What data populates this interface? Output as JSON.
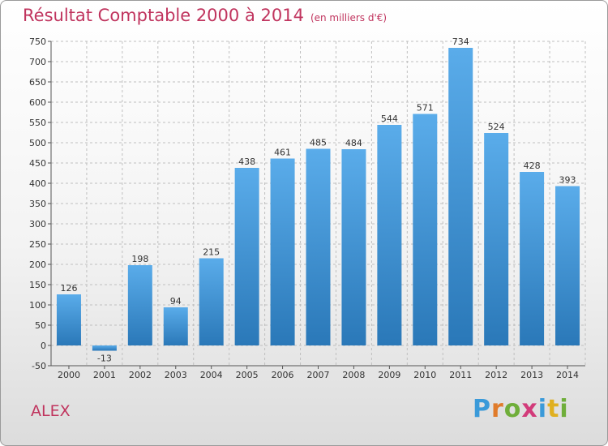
{
  "title": "Résultat Comptable 2000 à 2014",
  "unit": "(en milliers d'€)",
  "commune": "ALEX",
  "logo": {
    "letters": [
      "P",
      "r",
      "o",
      "x",
      "i",
      "t",
      "i"
    ],
    "colors": [
      "#3a9ad9",
      "#e07b2a",
      "#6fae3a",
      "#d23b7a",
      "#3a9ad9",
      "#e0b020",
      "#6fae3a"
    ]
  },
  "chart_data": {
    "type": "bar",
    "title": "Résultat Comptable 2000 à 2014",
    "categories": [
      "2000",
      "2001",
      "2002",
      "2003",
      "2004",
      "2005",
      "2006",
      "2007",
      "2008",
      "2009",
      "2010",
      "2011",
      "2012",
      "2013",
      "2014"
    ],
    "values": [
      126,
      -13,
      198,
      94,
      215,
      438,
      461,
      485,
      484,
      544,
      571,
      734,
      524,
      428,
      393
    ],
    "labels": [
      "126",
      "-13",
      "198",
      "94",
      "215",
      "438",
      "461",
      "485",
      "484",
      "544",
      "571",
      "734",
      "524",
      "428",
      "393"
    ],
    "ylim": [
      -50,
      750
    ],
    "yticks": [
      -50,
      0,
      50,
      100,
      150,
      200,
      250,
      300,
      350,
      400,
      450,
      500,
      550,
      600,
      650,
      700,
      750
    ],
    "grid": true,
    "colors": {
      "bar_top": "#5aacea",
      "bar_bottom": "#2a78b8",
      "grid": "#bfbfbf"
    }
  }
}
